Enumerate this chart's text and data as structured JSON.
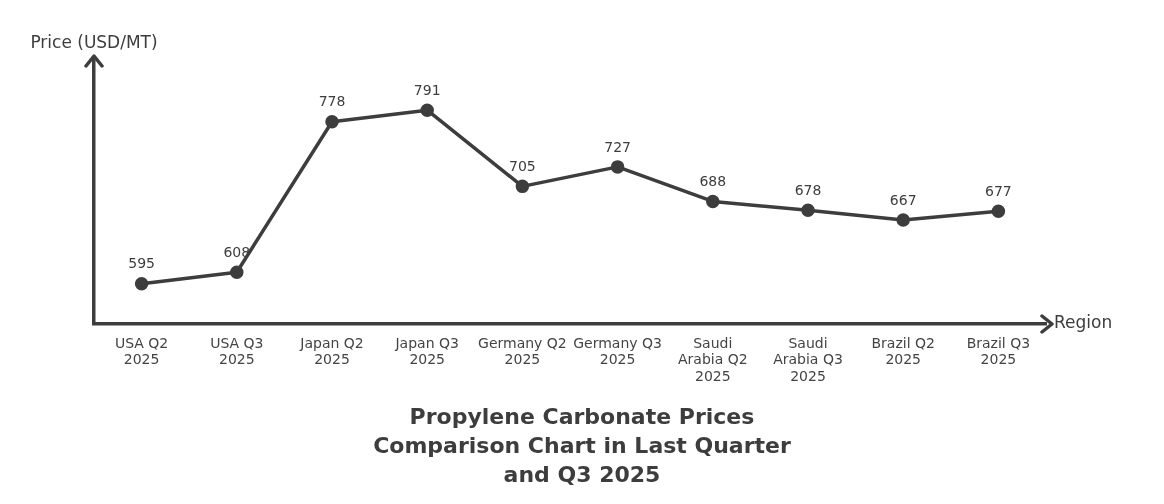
{
  "chart_data": {
    "type": "line",
    "title": "Propylene Carbonate Prices Comparison Chart in Last Quarter and Q3 2025",
    "xlabel": "Region",
    "ylabel": "Price (USD/MT)",
    "categories": [
      "USA Q2 2025",
      "USA Q3 2025",
      "Japan Q2 2025",
      "Japan Q3 2025",
      "Germany Q2 2025",
      "Germany Q3 2025",
      "Saudi Arabia Q2 2025",
      "Saudi Arabia Q3 2025",
      "Brazil Q2 2025",
      "Brazil Q3 2025"
    ],
    "series": [
      {
        "color": "#3d3d3d",
        "values": [
          595,
          608,
          778,
          791,
          705,
          727,
          688,
          678,
          667,
          677
        ]
      }
    ],
    "data_labels": true,
    "legend": false,
    "grid": false,
    "marker": "circle",
    "line_style": "solid"
  }
}
